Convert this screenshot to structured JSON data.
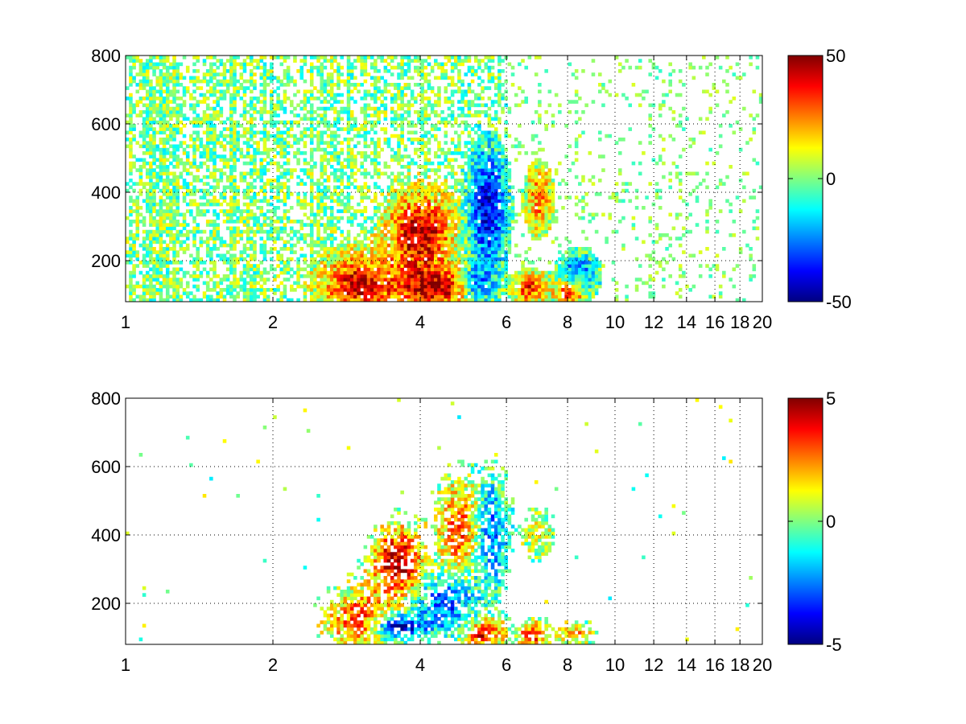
{
  "chart_data": [
    {
      "type": "heatmap",
      "title": "",
      "xlabel": "",
      "ylabel": "",
      "x_scale": "log",
      "xlim": [
        1,
        20
      ],
      "ylim": [
        80,
        800
      ],
      "x_ticks": [
        1,
        2,
        4,
        6,
        8,
        10,
        12,
        14,
        16,
        18,
        20
      ],
      "y_ticks": [
        200,
        400,
        600,
        800
      ],
      "grid": true,
      "colormap": "jet",
      "clim": [
        -50,
        50
      ],
      "colorbar_ticks": [
        -50,
        0,
        50
      ],
      "blobs": [
        {
          "x": 3.0,
          "y": 130,
          "sx": 0.12,
          "sy": 60,
          "value": 40
        },
        {
          "x": 4.0,
          "y": 280,
          "sx": 0.1,
          "sy": 80,
          "value": 45
        },
        {
          "x": 4.3,
          "y": 120,
          "sx": 0.12,
          "sy": 40,
          "value": 42
        },
        {
          "x": 5.5,
          "y": 350,
          "sx": 0.06,
          "sy": 120,
          "value": -40
        },
        {
          "x": 5.2,
          "y": 130,
          "sx": 0.05,
          "sy": 35,
          "value": -30
        },
        {
          "x": 6.7,
          "y": 120,
          "sx": 0.05,
          "sy": 30,
          "value": 35
        },
        {
          "x": 7.0,
          "y": 380,
          "sx": 0.04,
          "sy": 60,
          "value": 25
        },
        {
          "x": 8.1,
          "y": 110,
          "sx": 0.05,
          "sy": 25,
          "value": 38
        },
        {
          "x": 8.4,
          "y": 160,
          "sx": 0.06,
          "sy": 40,
          "value": -25
        }
      ]
    },
    {
      "type": "heatmap",
      "title": "",
      "xlabel": "",
      "ylabel": "",
      "x_scale": "log",
      "xlim": [
        1,
        20
      ],
      "ylim": [
        80,
        800
      ],
      "x_ticks": [
        1,
        2,
        4,
        6,
        8,
        10,
        12,
        14,
        16,
        18,
        20
      ],
      "y_ticks": [
        200,
        400,
        600,
        800
      ],
      "grid": true,
      "colormap": "jet",
      "clim": [
        -5,
        5
      ],
      "colorbar_ticks": [
        -5,
        0,
        5
      ],
      "blobs": [
        {
          "x": 3.0,
          "y": 150,
          "sx": 0.1,
          "sy": 60,
          "value": 3
        },
        {
          "x": 3.6,
          "y": 320,
          "sx": 0.08,
          "sy": 70,
          "value": 4.5
        },
        {
          "x": 3.6,
          "y": 130,
          "sx": 0.08,
          "sy": 25,
          "value": -4.5
        },
        {
          "x": 4.5,
          "y": 200,
          "sx": 0.1,
          "sy": 60,
          "value": -3
        },
        {
          "x": 4.8,
          "y": 420,
          "sx": 0.06,
          "sy": 90,
          "value": 3
        },
        {
          "x": 5.6,
          "y": 400,
          "sx": 0.05,
          "sy": 110,
          "value": -2.5
        },
        {
          "x": 5.4,
          "y": 110,
          "sx": 0.06,
          "sy": 30,
          "value": 4
        },
        {
          "x": 6.8,
          "y": 110,
          "sx": 0.05,
          "sy": 25,
          "value": 3.5
        },
        {
          "x": 7.0,
          "y": 400,
          "sx": 0.04,
          "sy": 40,
          "value": 1
        },
        {
          "x": 8.3,
          "y": 110,
          "sx": 0.05,
          "sy": 20,
          "value": 2
        }
      ]
    }
  ]
}
